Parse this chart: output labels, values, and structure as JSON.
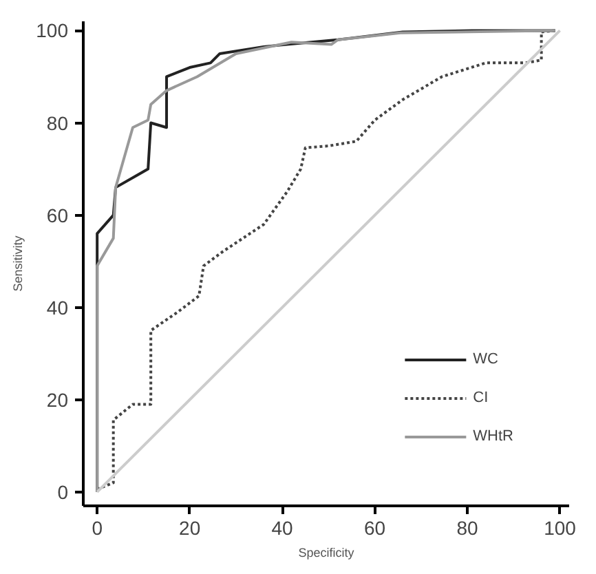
{
  "chart_data": {
    "type": "line",
    "xlabel": "Specificity",
    "ylabel": "Sensitivity",
    "xlim": [
      -3,
      102
    ],
    "ylim": [
      -3,
      102
    ],
    "xticks": [
      0,
      20,
      40,
      60,
      80,
      100
    ],
    "yticks": [
      0,
      20,
      40,
      60,
      80,
      100
    ],
    "grid": false,
    "legend": "bottom right",
    "marker": "none",
    "series": [
      {
        "name": "WC",
        "color": "#222222",
        "line_style": "solid",
        "x": [
          0,
          0,
          3.5,
          4,
          11,
          11.6,
          15,
          15,
          20,
          24.5,
          26.5,
          36,
          41,
          52,
          66,
          81,
          96.5,
          99
        ],
        "values": [
          0,
          56,
          60,
          66,
          70,
          80,
          79,
          90,
          92,
          93,
          95,
          96.5,
          97,
          98,
          99.7,
          100,
          100,
          100
        ]
      },
      {
        "name": "CI",
        "color": "#444444",
        "line_style": "dotted",
        "x": [
          0,
          3.5,
          3.5,
          7.7,
          11.6,
          11.6,
          17.4,
          22,
          23,
          27,
          36,
          41,
          44,
          45,
          50,
          56,
          60,
          66,
          74.5,
          84,
          92.6,
          96,
          96,
          99
        ],
        "values": [
          0.6,
          2,
          15.6,
          19,
          19,
          35,
          39,
          42.5,
          49,
          52,
          58,
          65,
          70,
          74.6,
          75,
          76,
          80.6,
          85,
          90,
          93,
          93,
          93.6,
          99.7,
          100
        ]
      },
      {
        "name": "WHtR",
        "color": "#999999",
        "line_style": "solid",
        "x": [
          0,
          0,
          3.5,
          4,
          7.7,
          11,
          11.6,
          15,
          21.6,
          30,
          42,
          50.6,
          52,
          65.5,
          99
        ],
        "values": [
          0,
          49,
          55,
          66,
          79,
          80.6,
          84,
          87,
          90,
          95,
          97.5,
          97,
          98,
          99.5,
          100
        ]
      },
      {
        "color": "#cccccc",
        "line_style": "solid",
        "x": [
          0,
          100
        ],
        "values": [
          0,
          100
        ]
      }
    ]
  }
}
